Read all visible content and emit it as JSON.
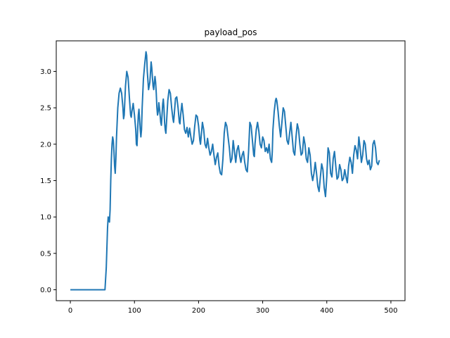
{
  "chart_data": {
    "type": "line",
    "title": "payload_pos",
    "xlabel": "",
    "ylabel": "",
    "xlim": [
      -22,
      522
    ],
    "ylim": [
      -0.15,
      3.42
    ],
    "x_ticks": [
      0,
      100,
      200,
      300,
      400,
      500
    ],
    "y_ticks": [
      0.0,
      0.5,
      1.0,
      1.5,
      2.0,
      2.5,
      3.0
    ],
    "x_tick_labels": [
      "0",
      "100",
      "200",
      "300",
      "400",
      "500"
    ],
    "y_tick_labels": [
      "0.0",
      "0.5",
      "1.0",
      "1.5",
      "2.0",
      "2.5",
      "3.0"
    ],
    "grid": false,
    "series": [
      {
        "color": "#1f77b4",
        "points": [
          [
            0,
            0.0
          ],
          [
            10,
            0.0
          ],
          [
            20,
            0.0
          ],
          [
            30,
            0.0
          ],
          [
            40,
            0.0
          ],
          [
            50,
            0.0
          ],
          [
            54,
            0.0
          ],
          [
            56,
            0.3
          ],
          [
            58,
            0.85
          ],
          [
            59,
            1.0
          ],
          [
            60,
            0.97
          ],
          [
            61,
            0.93
          ],
          [
            62,
            1.1
          ],
          [
            63,
            1.5
          ],
          [
            64,
            1.8
          ],
          [
            65,
            2.0
          ],
          [
            66,
            2.1
          ],
          [
            67,
            2.05
          ],
          [
            68,
            1.9
          ],
          [
            69,
            1.7
          ],
          [
            70,
            1.6
          ],
          [
            71,
            1.8
          ],
          [
            72,
            2.1
          ],
          [
            74,
            2.5
          ],
          [
            76,
            2.7
          ],
          [
            78,
            2.77
          ],
          [
            80,
            2.7
          ],
          [
            82,
            2.5
          ],
          [
            83,
            2.35
          ],
          [
            84,
            2.4
          ],
          [
            86,
            2.8
          ],
          [
            88,
            3.0
          ],
          [
            90,
            2.92
          ],
          [
            92,
            2.65
          ],
          [
            94,
            2.4
          ],
          [
            95,
            2.37
          ],
          [
            96,
            2.45
          ],
          [
            98,
            2.56
          ],
          [
            100,
            2.4
          ],
          [
            102,
            2.2
          ],
          [
            103,
            2.0
          ],
          [
            104,
            1.98
          ],
          [
            105,
            2.2
          ],
          [
            106,
            2.4
          ],
          [
            107,
            2.48
          ],
          [
            108,
            2.35
          ],
          [
            109,
            2.2
          ],
          [
            110,
            2.1
          ],
          [
            111,
            2.2
          ],
          [
            112,
            2.5
          ],
          [
            114,
            2.9
          ],
          [
            116,
            3.1
          ],
          [
            118,
            3.27
          ],
          [
            119,
            3.22
          ],
          [
            120,
            3.0
          ],
          [
            122,
            2.75
          ],
          [
            124,
            2.85
          ],
          [
            126,
            3.13
          ],
          [
            127,
            3.05
          ],
          [
            128,
            2.92
          ],
          [
            129,
            2.8
          ],
          [
            130,
            2.75
          ],
          [
            131,
            2.85
          ],
          [
            132,
            2.93
          ],
          [
            133,
            2.85
          ],
          [
            134,
            2.7
          ],
          [
            135,
            2.5
          ],
          [
            136,
            2.4
          ],
          [
            137,
            2.45
          ],
          [
            138,
            2.57
          ],
          [
            139,
            2.5
          ],
          [
            140,
            2.4
          ],
          [
            141,
            2.3
          ],
          [
            142,
            2.26
          ],
          [
            143,
            2.4
          ],
          [
            144,
            2.55
          ],
          [
            145,
            2.62
          ],
          [
            146,
            2.5
          ],
          [
            147,
            2.3
          ],
          [
            148,
            2.2
          ],
          [
            149,
            2.15
          ],
          [
            150,
            2.3
          ],
          [
            152,
            2.6
          ],
          [
            154,
            2.75
          ],
          [
            156,
            2.7
          ],
          [
            158,
            2.5
          ],
          [
            160,
            2.35
          ],
          [
            161,
            2.3
          ],
          [
            162,
            2.4
          ],
          [
            164,
            2.63
          ],
          [
            166,
            2.65
          ],
          [
            168,
            2.5
          ],
          [
            170,
            2.3
          ],
          [
            171,
            2.28
          ],
          [
            172,
            2.4
          ],
          [
            174,
            2.56
          ],
          [
            176,
            2.4
          ],
          [
            178,
            2.2
          ],
          [
            180,
            2.15
          ],
          [
            182,
            2.23
          ],
          [
            184,
            2.1
          ],
          [
            186,
            2.22
          ],
          [
            188,
            2.1
          ],
          [
            190,
            2.0
          ],
          [
            192,
            2.05
          ],
          [
            194,
            2.25
          ],
          [
            196,
            2.4
          ],
          [
            198,
            2.38
          ],
          [
            200,
            2.25
          ],
          [
            202,
            2.05
          ],
          [
            203,
            2.0
          ],
          [
            204,
            2.1
          ],
          [
            206,
            2.3
          ],
          [
            208,
            2.2
          ],
          [
            210,
            2.0
          ],
          [
            212,
            1.95
          ],
          [
            214,
            2.08
          ],
          [
            216,
            1.95
          ],
          [
            218,
            1.85
          ],
          [
            220,
            1.9
          ],
          [
            222,
            2.0
          ],
          [
            224,
            1.85
          ],
          [
            226,
            1.72
          ],
          [
            228,
            1.82
          ],
          [
            230,
            1.88
          ],
          [
            232,
            1.7
          ],
          [
            234,
            1.6
          ],
          [
            236,
            1.58
          ],
          [
            238,
            1.8
          ],
          [
            240,
            2.15
          ],
          [
            242,
            2.3
          ],
          [
            244,
            2.25
          ],
          [
            246,
            2.1
          ],
          [
            248,
            1.95
          ],
          [
            250,
            1.75
          ],
          [
            252,
            1.8
          ],
          [
            254,
            2.05
          ],
          [
            256,
            1.9
          ],
          [
            258,
            1.75
          ],
          [
            260,
            1.92
          ],
          [
            262,
            1.98
          ],
          [
            264,
            1.85
          ],
          [
            266,
            1.75
          ],
          [
            268,
            1.85
          ],
          [
            270,
            1.9
          ],
          [
            272,
            1.75
          ],
          [
            274,
            1.65
          ],
          [
            276,
            1.62
          ],
          [
            278,
            1.9
          ],
          [
            280,
            2.3
          ],
          [
            282,
            2.25
          ],
          [
            284,
            2.05
          ],
          [
            286,
            1.85
          ],
          [
            287,
            1.83
          ],
          [
            288,
            2.0
          ],
          [
            290,
            2.2
          ],
          [
            292,
            2.3
          ],
          [
            294,
            2.18
          ],
          [
            296,
            2.0
          ],
          [
            298,
            1.95
          ],
          [
            300,
            2.1
          ],
          [
            302,
            2.05
          ],
          [
            304,
            1.9
          ],
          [
            306,
            1.95
          ],
          [
            308,
            1.88
          ],
          [
            310,
            2.0
          ],
          [
            312,
            1.8
          ],
          [
            314,
            1.75
          ],
          [
            315,
            1.9
          ],
          [
            316,
            2.2
          ],
          [
            318,
            2.45
          ],
          [
            320,
            2.6
          ],
          [
            321,
            2.63
          ],
          [
            322,
            2.6
          ],
          [
            324,
            2.45
          ],
          [
            326,
            2.25
          ],
          [
            328,
            2.1
          ],
          [
            330,
            2.3
          ],
          [
            332,
            2.5
          ],
          [
            334,
            2.45
          ],
          [
            336,
            2.25
          ],
          [
            338,
            2.05
          ],
          [
            340,
            2.0
          ],
          [
            342,
            2.15
          ],
          [
            344,
            2.3
          ],
          [
            346,
            2.1
          ],
          [
            348,
            1.9
          ],
          [
            350,
            1.85
          ],
          [
            352,
            2.1
          ],
          [
            354,
            2.28
          ],
          [
            356,
            2.2
          ],
          [
            358,
            2.0
          ],
          [
            360,
            1.85
          ],
          [
            362,
            1.88
          ],
          [
            364,
            2.1
          ],
          [
            366,
            2.0
          ],
          [
            368,
            1.8
          ],
          [
            370,
            1.75
          ],
          [
            372,
            1.95
          ],
          [
            374,
            1.85
          ],
          [
            376,
            1.6
          ],
          [
            378,
            1.5
          ],
          [
            380,
            1.6
          ],
          [
            382,
            1.75
          ],
          [
            384,
            1.6
          ],
          [
            386,
            1.42
          ],
          [
            388,
            1.35
          ],
          [
            390,
            1.55
          ],
          [
            392,
            1.73
          ],
          [
            394,
            1.65
          ],
          [
            396,
            1.4
          ],
          [
            398,
            1.28
          ],
          [
            400,
            1.55
          ],
          [
            402,
            1.95
          ],
          [
            404,
            1.88
          ],
          [
            406,
            1.6
          ],
          [
            408,
            1.55
          ],
          [
            410,
            1.8
          ],
          [
            412,
            1.9
          ],
          [
            414,
            1.7
          ],
          [
            416,
            1.52
          ],
          [
            418,
            1.55
          ],
          [
            420,
            1.72
          ],
          [
            422,
            1.65
          ],
          [
            424,
            1.5
          ],
          [
            426,
            1.53
          ],
          [
            428,
            1.65
          ],
          [
            430,
            1.55
          ],
          [
            432,
            1.47
          ],
          [
            434,
            1.7
          ],
          [
            436,
            1.82
          ],
          [
            438,
            1.75
          ],
          [
            440,
            1.6
          ],
          [
            442,
            1.85
          ],
          [
            444,
            1.98
          ],
          [
            446,
            1.92
          ],
          [
            448,
            1.8
          ],
          [
            450,
            2.1
          ],
          [
            452,
            1.95
          ],
          [
            454,
            1.75
          ],
          [
            456,
            1.85
          ],
          [
            458,
            2.05
          ],
          [
            460,
            2.0
          ],
          [
            462,
            1.8
          ],
          [
            464,
            1.72
          ],
          [
            466,
            1.78
          ],
          [
            468,
            1.65
          ],
          [
            470,
            1.7
          ],
          [
            472,
            2.0
          ],
          [
            474,
            2.05
          ],
          [
            476,
            1.95
          ],
          [
            478,
            1.75
          ],
          [
            480,
            1.72
          ],
          [
            482,
            1.78
          ]
        ]
      }
    ]
  }
}
